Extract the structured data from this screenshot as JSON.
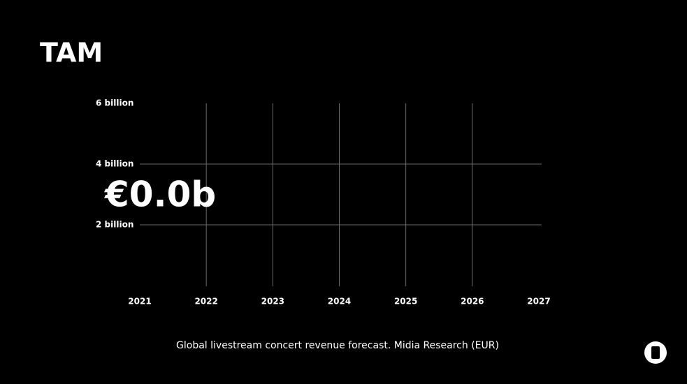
{
  "chart_data": {
    "type": "line",
    "title": "TAM",
    "categories": [
      "2021",
      "2022",
      "2023",
      "2024",
      "2025",
      "2026",
      "2027"
    ],
    "ylim": [
      0,
      6
    ],
    "yticks": [
      {
        "value": 2,
        "label": "2 billion"
      },
      {
        "value": 4,
        "label": "4 billion"
      },
      {
        "value": 6,
        "label": "6 billion"
      }
    ],
    "grid": true,
    "annotation": "€0.0b",
    "caption": "Global livestream concert revenue forecast. Midia Research (EUR)"
  }
}
